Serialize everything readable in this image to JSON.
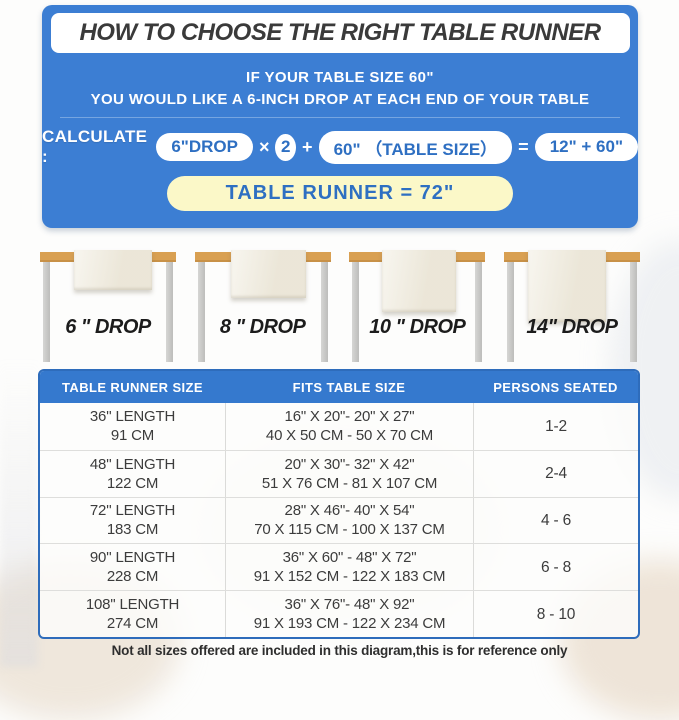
{
  "hero": {
    "title": "HOW TO CHOOSE THE RIGHT TABLE RUNNER",
    "subtitle_line1": "IF YOUR TABLE SIZE 60\"",
    "subtitle_line2": "YOU WOULD LIKE A 6-INCH DROP AT EACH END OF YOUR TABLE",
    "calculate": {
      "label": "CALCULATE :",
      "drop_pill": "6\"DROP",
      "times": "×",
      "multiplier": "2",
      "plus": "+",
      "table_size_pill": "60\" （TABLE SIZE）",
      "equals": "=",
      "sum_pill": "12\" + 60\"",
      "result": "TABLE RUNNER = 72\""
    }
  },
  "drops": [
    {
      "label": "6 \" DROP"
    },
    {
      "label": "8 \" DROP"
    },
    {
      "label": "10 \" DROP"
    },
    {
      "label": "14\" DROP"
    }
  ],
  "size_table": {
    "headers": [
      "TABLE RUNNER SIZE",
      "FITS TABLE SIZE",
      "PERSONS SEATED"
    ],
    "rows": [
      {
        "runner_in": "36'' LENGTH",
        "runner_cm": "91 CM",
        "fits_in": "16\" X 20\"- 20\" X 27\"",
        "fits_cm": "40 X 50 CM - 50 X 70 CM",
        "persons": "1-2"
      },
      {
        "runner_in": "48'' LENGTH",
        "runner_cm": "122 CM",
        "fits_in": "20\" X 30\"- 32\" X 42\"",
        "fits_cm": "51 X 76 CM - 81 X 107 CM",
        "persons": "2-4"
      },
      {
        "runner_in": "72'' LENGTH",
        "runner_cm": "183 CM",
        "fits_in": "28\" X 46\"- 40\" X 54\"",
        "fits_cm": "70 X 115 CM - 100 X 137 CM",
        "persons": "4 - 6"
      },
      {
        "runner_in": "90'' LENGTH",
        "runner_cm": "228 CM",
        "fits_in": "36\" X 60\" - 48\" X 72\"",
        "fits_cm": "91 X 152 CM - 122 X 183 CM",
        "persons": "6 - 8"
      },
      {
        "runner_in": "108'' LENGTH",
        "runner_cm": "274 CM",
        "fits_in": "36\" X 76\"- 48\" X 92\"",
        "fits_cm": "91 X 193 CM - 122 X 234 CM",
        "persons": "8 - 10"
      }
    ]
  },
  "footnote": "Not all sizes offered are included in this diagram,this is for reference only",
  "colors": {
    "panel_blue": "#3c7ed3",
    "pill_text_blue": "#2e6fc2",
    "result_pill_yellow": "#fbf8c8",
    "table_border_blue": "#2e6cbb",
    "table_header_blue": "#3579ce",
    "tabletop_wood": "#d9a052",
    "runner_cream": "#f1ede0",
    "leg_gray": "#c6c6c4"
  }
}
